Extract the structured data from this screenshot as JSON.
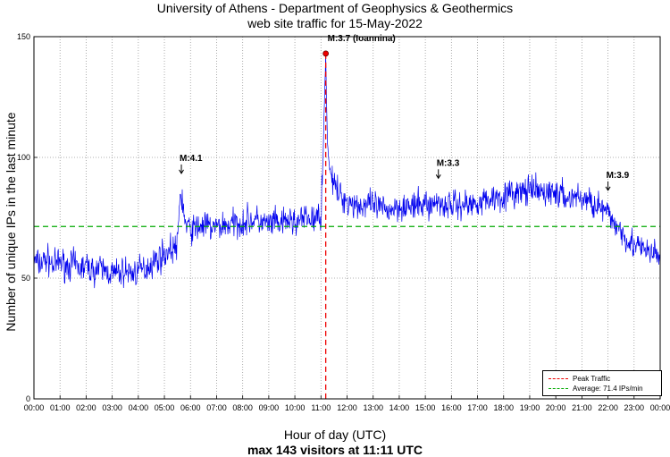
{
  "header": {
    "title_line1": "University of Athens - Department of Geophysics & Geothermics",
    "title_line2": "web site traffic for 15-May-2022"
  },
  "footer": {
    "xlabel": "Hour of day (UTC)",
    "summary": "max 143 visitors at 11:11 UTC"
  },
  "colors": {
    "series": "#0000ee",
    "peak": "#ee0000",
    "average": "#00aa00",
    "grid": "#999999"
  },
  "legend": {
    "peak_label": "Peak Traffic",
    "average_label": "Average: 71.4 IPs/min"
  },
  "chart_data": {
    "type": "line",
    "title": "University of Athens - Department of Geophysics & Geothermics web site traffic for 15-May-2022",
    "xlabel": "Hour of day (UTC)",
    "ylabel": "Number of unique IPs in the last minute",
    "xlim": [
      0,
      24
    ],
    "ylim": [
      0,
      150
    ],
    "yticks": [
      0,
      50,
      100,
      150
    ],
    "xtick_labels": [
      "00:00",
      "01:00",
      "02:00",
      "03:00",
      "04:00",
      "05:00",
      "06:00",
      "07:00",
      "08:00",
      "09:00",
      "10:00",
      "11:00",
      "12:00",
      "13:00",
      "14:00",
      "15:00",
      "16:00",
      "17:00",
      "18:00",
      "19:00",
      "20:00",
      "21:00",
      "22:00",
      "23:00",
      "00:00"
    ],
    "grid": true,
    "legend_position": "bottom-right",
    "average": 71.4,
    "peak": {
      "hour": 11.1833,
      "value": 143,
      "label": "M:3.7 (Ioannina)"
    },
    "annotations": [
      {
        "hour": 5.65,
        "value": 93,
        "label": "M:4.1"
      },
      {
        "hour": 15.5,
        "value": 91,
        "label": "M:3.3"
      },
      {
        "hour": 22.0,
        "value": 86,
        "label": "M:3.9"
      }
    ],
    "series": [
      {
        "name": "traffic",
        "x": [
          0,
          0.25,
          0.5,
          0.75,
          1,
          1.25,
          1.5,
          1.75,
          2,
          2.25,
          2.5,
          2.75,
          3,
          3.25,
          3.5,
          3.75,
          4,
          4.25,
          4.5,
          4.75,
          5,
          5.25,
          5.5,
          5.6,
          5.7,
          5.8,
          6,
          6.25,
          6.5,
          6.75,
          7,
          7.25,
          7.5,
          7.75,
          8,
          8.25,
          8.5,
          8.75,
          9,
          9.25,
          9.5,
          9.75,
          10,
          10.25,
          10.5,
          10.75,
          11,
          11.1,
          11.1833,
          11.25,
          11.35,
          11.5,
          11.75,
          12,
          12.25,
          12.5,
          12.75,
          13,
          13.25,
          13.5,
          13.75,
          14,
          14.25,
          14.5,
          14.75,
          15,
          15.25,
          15.5,
          15.75,
          16,
          16.25,
          16.5,
          16.75,
          17,
          17.25,
          17.5,
          17.75,
          18,
          18.25,
          18.5,
          18.75,
          19,
          19.25,
          19.5,
          19.75,
          20,
          20.25,
          20.5,
          20.75,
          21,
          21.25,
          21.5,
          21.75,
          22,
          22.25,
          22.5,
          22.75,
          23,
          23.25,
          23.5,
          23.75,
          24
        ],
        "y": [
          57,
          56,
          58,
          55,
          57,
          55,
          56,
          54,
          55,
          53,
          54,
          53,
          52,
          52,
          53,
          52,
          53,
          54,
          56,
          58,
          60,
          62,
          63,
          85,
          82,
          72,
          70,
          71,
          72,
          71,
          71,
          72,
          72,
          73,
          73,
          74,
          74,
          73,
          72,
          73,
          72,
          74,
          73,
          74,
          75,
          74,
          76,
          110,
          143,
          105,
          95,
          88,
          84,
          82,
          81,
          80,
          80,
          80,
          79,
          78,
          79,
          80,
          80,
          79,
          80,
          81,
          80,
          82,
          80,
          81,
          80,
          81,
          80,
          82,
          82,
          83,
          84,
          84,
          85,
          85,
          86,
          86,
          86,
          85,
          86,
          85,
          84,
          83,
          84,
          83,
          82,
          81,
          79,
          76,
          73,
          70,
          66,
          64,
          62,
          61,
          60,
          59
        ]
      }
    ]
  }
}
